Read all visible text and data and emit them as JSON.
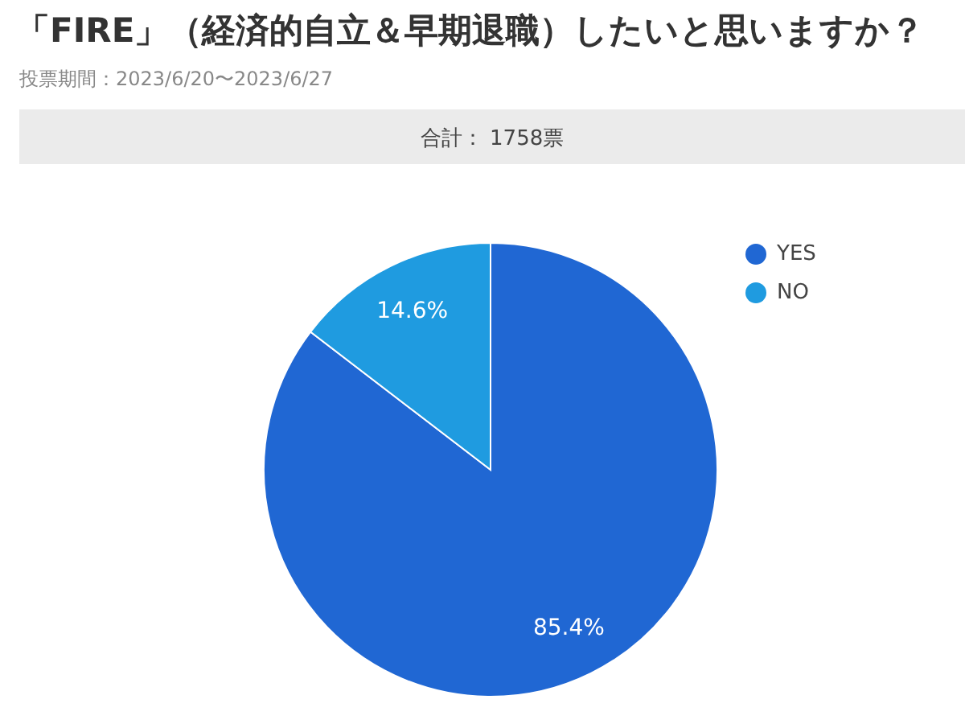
{
  "chart_data": {
    "type": "pie",
    "title": "「FIRE」（経済的自立＆早期退職）したいと思いますか？",
    "subtitle": "投票期間：2023/6/20〜2023/6/27",
    "annotations": [
      "合計： 1758票"
    ],
    "categories": [
      "YES",
      "NO"
    ],
    "values": [
      85.4,
      14.6
    ],
    "colors": [
      "#2067d3",
      "#1f9be0"
    ],
    "value_labels": [
      "85.4%",
      "14.6%"
    ],
    "legend": "top right"
  }
}
